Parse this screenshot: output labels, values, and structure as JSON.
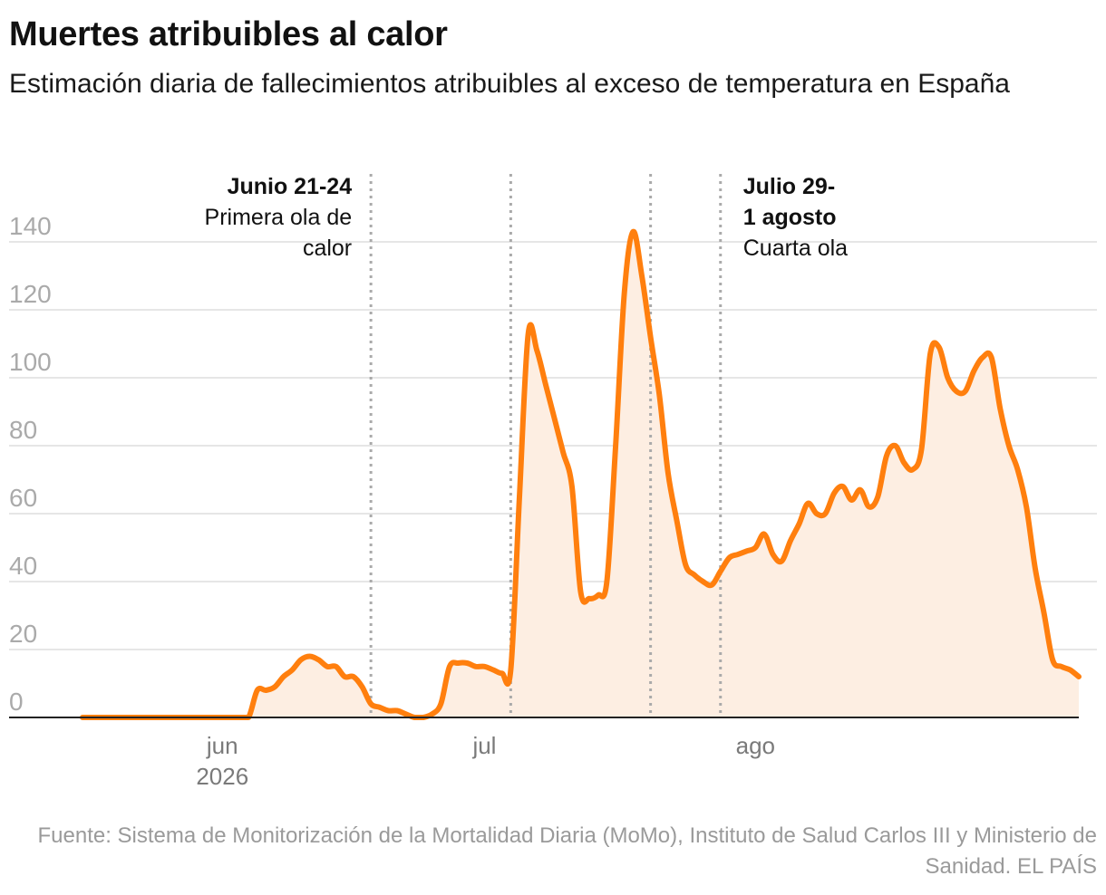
{
  "title": "Muertes atribuibles al calor",
  "subtitle": "Estimación diaria de fallecimientos atribuibles al exceso de temperatura en España",
  "source": "Fuente: Sistema de Monitorización de la Mortalidad Diaria (MoMo), Instituto de Salud Carlos III y Ministerio de Sanidad. EL PAÍS",
  "colors": {
    "line": "#ff7f0e",
    "area": "#fdeee2",
    "grid": "#dddddd",
    "axis": "#222222",
    "marker": "#aaaaaa"
  },
  "chart_data": {
    "type": "area",
    "x_start": "2026-05-16",
    "x_step_days": 1,
    "values": [
      0,
      0,
      0,
      0,
      0,
      0,
      0,
      0,
      0,
      0,
      0,
      0,
      0,
      0,
      0,
      0,
      0,
      0,
      0,
      0,
      8,
      8,
      9,
      12,
      14,
      17,
      18,
      17,
      15,
      15,
      12,
      12,
      9,
      4,
      3,
      2,
      2,
      1,
      0,
      0,
      1,
      4,
      15,
      16,
      16,
      15,
      15,
      14,
      13,
      14,
      65,
      113,
      108,
      98,
      88,
      78,
      68,
      37,
      35,
      36,
      40,
      80,
      125,
      143,
      130,
      112,
      95,
      72,
      58,
      45,
      42,
      40,
      39,
      43,
      47,
      48,
      49,
      50,
      54,
      48,
      46,
      52,
      57,
      63,
      60,
      60,
      66,
      68,
      64,
      67,
      62,
      65,
      77,
      80,
      75,
      73,
      79,
      107,
      109,
      100,
      96,
      96,
      102,
      106,
      106,
      91,
      80,
      73,
      62,
      44,
      31,
      17,
      15,
      14,
      12
    ],
    "ylim": [
      0,
      140
    ],
    "yticks": [
      "0",
      "20",
      "40",
      "60",
      "80",
      "100",
      "120",
      "140"
    ],
    "x_ticks": [
      {
        "date": "2026-06-01",
        "label": "jun",
        "sublabel": "2026"
      },
      {
        "date": "2026-07-01",
        "label": "jul",
        "sublabel": ""
      },
      {
        "date": "2026-08-01",
        "label": "ago",
        "sublabel": ""
      }
    ],
    "markers": [
      {
        "date": "2026-06-18",
        "title": [
          "Junio 21-24"
        ],
        "text": [
          "Primera ola de",
          "calor"
        ],
        "side": "left"
      },
      {
        "date": "2026-07-04",
        "title": [],
        "text": [],
        "side": "left"
      },
      {
        "date": "2026-07-20",
        "title": [],
        "text": [],
        "side": "left"
      },
      {
        "date": "2026-07-28",
        "title": [
          "Julio 29-",
          "1 agosto"
        ],
        "text": [
          "Cuarta ola"
        ],
        "side": "right"
      }
    ],
    "grid": true
  }
}
